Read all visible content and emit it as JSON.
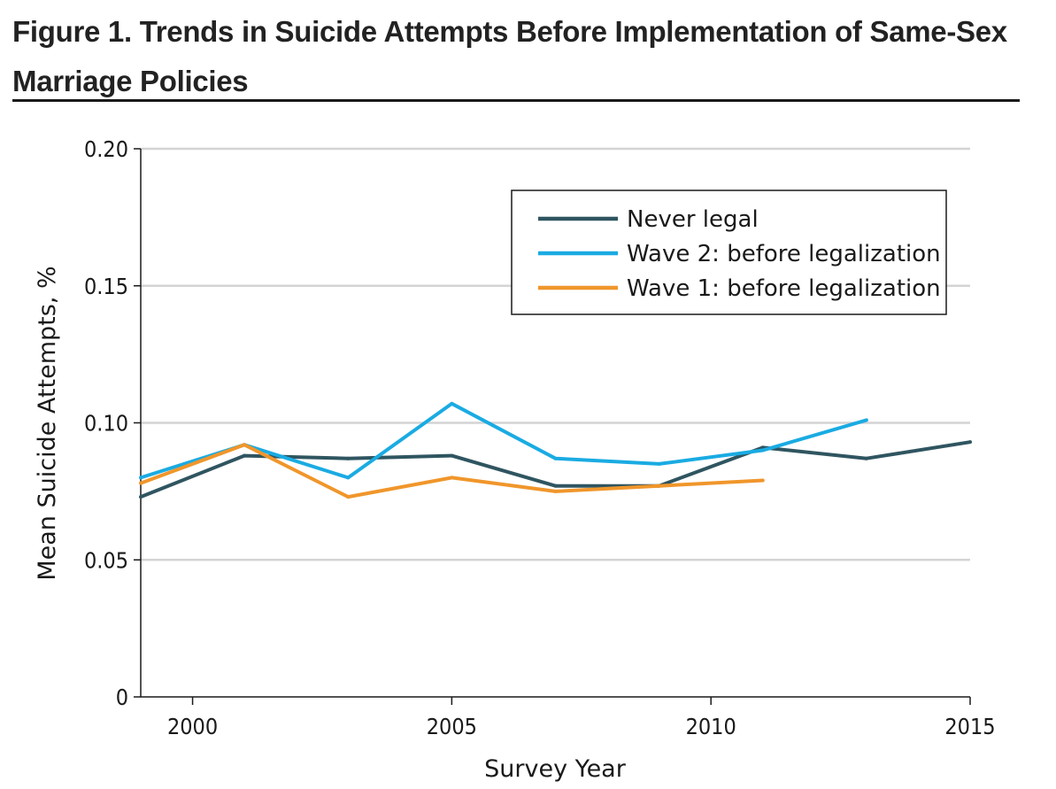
{
  "figure": {
    "title": "Figure 1. Trends in Suicide Attempts Before Implementation of Same-Sex Marriage Policies"
  },
  "chart_data": {
    "type": "line",
    "title": "Figure 1. Trends in Suicide Attempts Before Implementation of Same-Sex Marriage Policies",
    "xlabel": "Survey Year",
    "ylabel": "Mean Suicide Attempts, %",
    "xlim": [
      1999,
      2015
    ],
    "ylim": [
      0,
      0.2
    ],
    "x_ticks": [
      2000,
      2005,
      2010,
      2015
    ],
    "x_tick_labels": [
      "2000",
      "2005",
      "2010",
      "2015"
    ],
    "y_ticks": [
      0,
      0.05,
      0.1,
      0.15,
      0.2
    ],
    "y_tick_labels": [
      "0",
      "0.05",
      "0.10",
      "0.15",
      "0.20"
    ],
    "grid": "horizontal",
    "legend_position": "top-right",
    "series": [
      {
        "name": "Never legal",
        "color": "#2f5560",
        "x": [
          1999,
          2001,
          2003,
          2005,
          2007,
          2009,
          2011,
          2013,
          2015
        ],
        "y": [
          0.073,
          0.088,
          0.087,
          0.088,
          0.077,
          0.077,
          0.091,
          0.087,
          0.093
        ]
      },
      {
        "name": "Wave 2: before legalization",
        "color": "#1aabe2",
        "x": [
          1999,
          2001,
          2003,
          2005,
          2007,
          2009,
          2011,
          2013
        ],
        "y": [
          0.08,
          0.092,
          0.08,
          0.107,
          0.087,
          0.085,
          0.09,
          0.101
        ]
      },
      {
        "name": "Wave 1: before legalization",
        "color": "#f0962b",
        "x": [
          1999,
          2001,
          2003,
          2005,
          2007,
          2009,
          2011
        ],
        "y": [
          0.078,
          0.092,
          0.073,
          0.08,
          0.075,
          0.077,
          0.079
        ]
      }
    ]
  },
  "colors": {
    "grid": "#d4d4d4",
    "axis": "#1a1a1a",
    "text": "#1a1a1a"
  }
}
